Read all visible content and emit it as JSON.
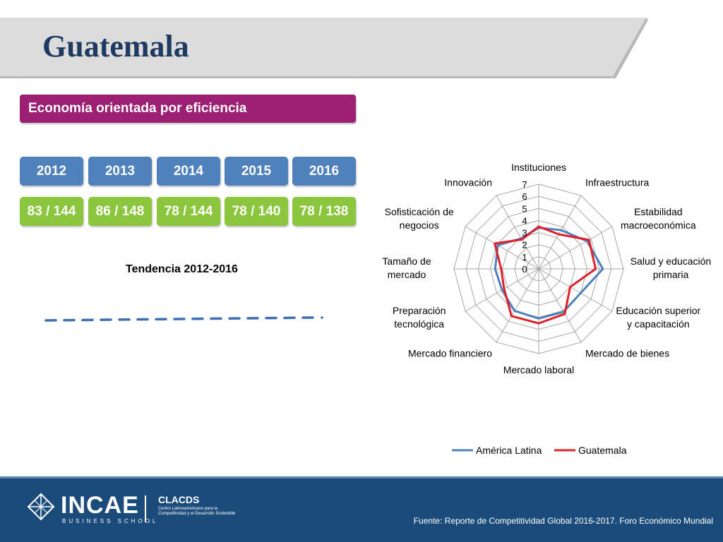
{
  "page": {
    "title": "Guatemala",
    "category": "Economía orientada por eficiencia",
    "trend_label": "Tendencia 2012-2016",
    "source": "Fuente: Reporte de Competitividad Global 2016-2017. Foro Económico Mundial"
  },
  "years": [
    {
      "year": "2012",
      "rank": "83 / 144"
    },
    {
      "year": "2013",
      "rank": "86 / 148"
    },
    {
      "year": "2014",
      "rank": "78 / 144"
    },
    {
      "year": "2015",
      "rank": "78 / 140"
    },
    {
      "year": "2016",
      "rank": "78 / 138"
    }
  ],
  "footer": {
    "logo": "INCAE",
    "school": "BUSINESS SCHOOL",
    "partner": "CLACDS",
    "partner_full": "Centro Latinoamericano para la Competitividad y el Desarrollo Sostenible"
  },
  "colors": {
    "title": "#1f3a60",
    "category_bar": "#9b1f73",
    "year_box": "#4f81bd",
    "rank_box": "#8cc63f",
    "footer": "#1b4b7b",
    "america_latina": "#4f81bd",
    "guatemala": "#e0202a"
  },
  "chart_data": {
    "type": "radar",
    "categories": [
      "Instituciones",
      "Infraestructura",
      "Estabilidad macroeconómica",
      "Salud y educación primaria",
      "Educación superior y capacitación",
      "Mercado de bienes",
      "Mercado laboral",
      "Mercado financiero",
      "Preparación tecnológica",
      "Tamaño de mercado",
      "Sofisticación de negocios",
      "Innovación"
    ],
    "category_lines": [
      [
        "Instituciones"
      ],
      [
        "Infraestructura"
      ],
      [
        "Estabilidad",
        "macroeconómica"
      ],
      [
        "Salud y educación",
        "primaria"
      ],
      [
        "Educación superior",
        "y capacitación"
      ],
      [
        "Mercado de bienes"
      ],
      [
        "Mercado laboral"
      ],
      [
        "Mercado financiero"
      ],
      [
        "Preparación",
        "tecnológica"
      ],
      [
        "Tamaño de",
        "mercado"
      ],
      [
        "Sofisticación de",
        "negocios"
      ],
      [
        "Innovación"
      ]
    ],
    "series": [
      {
        "name": "América Latina",
        "values": [
          3.4,
          3.7,
          4.6,
          5.3,
          4.0,
          4.1,
          4.1,
          4.0,
          3.5,
          3.6,
          3.9,
          2.9
        ]
      },
      {
        "name": "Guatemala",
        "values": [
          3.5,
          3.3,
          4.8,
          4.7,
          3.0,
          4.3,
          4.5,
          4.5,
          3.3,
          3.1,
          4.2,
          2.8
        ]
      }
    ],
    "rlim": [
      0,
      7
    ],
    "ticks": [
      0,
      1,
      2,
      3,
      4,
      5,
      6,
      7
    ],
    "legend_position": "bottom",
    "grid": true
  }
}
